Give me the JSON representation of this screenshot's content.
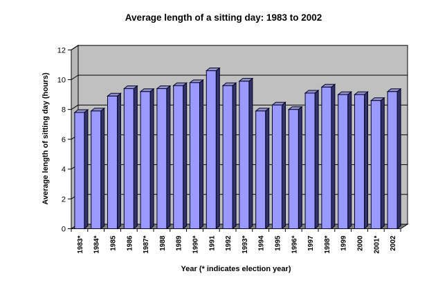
{
  "chart_data": {
    "type": "bar",
    "title": "Average length of a sitting day: 1983 to 2002",
    "xlabel": "Year (* indicates election year)",
    "ylabel": "Average length of sitting day (hours)",
    "categories": [
      "1983*",
      "1984*",
      "1985",
      "1986",
      "1987*",
      "1988",
      "1989",
      "1990*",
      "1991",
      "1992",
      "1993*",
      "1994",
      "1995",
      "1996*",
      "1997",
      "1998*",
      "1999",
      "2000",
      "2001*",
      "2002"
    ],
    "values": [
      7.8,
      7.9,
      8.9,
      9.4,
      9.2,
      9.4,
      9.6,
      9.8,
      10.6,
      9.6,
      9.9,
      7.9,
      8.3,
      8.0,
      9.1,
      9.5,
      9.0,
      9.0,
      8.6,
      9.2
    ],
    "ylim": [
      0,
      12
    ],
    "yticks": [
      0,
      2,
      4,
      6,
      8,
      10,
      12
    ],
    "grid": true,
    "legend": "none",
    "style": {
      "background": "#FFFFFF",
      "plot_bg": "#C0C0C0",
      "left_wall": "#B8B8B8",
      "floor": "#808080",
      "bar_front": "#9999FF",
      "bar_top": "#9191C8",
      "bar_side": "#333366",
      "gridline": "#000000",
      "text": "#000000"
    }
  }
}
